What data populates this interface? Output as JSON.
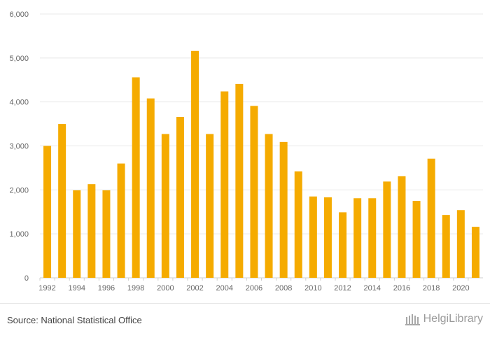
{
  "chart_data": {
    "type": "bar",
    "categories": [
      "1992",
      "1993",
      "1994",
      "1995",
      "1996",
      "1997",
      "1998",
      "1999",
      "2000",
      "2001",
      "2002",
      "2003",
      "2004",
      "2005",
      "2006",
      "2007",
      "2008",
      "2009",
      "2010",
      "2011",
      "2012",
      "2013",
      "2014",
      "2015",
      "2016",
      "2017",
      "2018",
      "2019",
      "2020",
      "2021"
    ],
    "x_tick_labels": [
      "1992",
      "",
      "1994",
      "",
      "1996",
      "",
      "1998",
      "",
      "2000",
      "",
      "2002",
      "",
      "2004",
      "",
      "2006",
      "",
      "2008",
      "",
      "2010",
      "",
      "2012",
      "",
      "2014",
      "",
      "2016",
      "",
      "2018",
      "",
      "2020",
      ""
    ],
    "values": [
      3000,
      3500,
      1990,
      2130,
      1990,
      2600,
      4560,
      4080,
      3270,
      3660,
      5160,
      3270,
      4240,
      4410,
      3910,
      3270,
      3090,
      2420,
      1850,
      1830,
      1490,
      1810,
      1810,
      2190,
      2310,
      1750,
      2710,
      1430,
      1540,
      1160
    ],
    "y_ticks": [
      0,
      1000,
      2000,
      3000,
      4000,
      5000,
      6000
    ],
    "y_tick_labels": [
      "0",
      "1,000",
      "2,000",
      "3,000",
      "4,000",
      "5,000",
      "6,000"
    ],
    "ylim": [
      0,
      6000
    ],
    "title": "",
    "xlabel": "",
    "ylabel": "",
    "grid": true,
    "bar_color": "#f5ab00"
  },
  "footer": {
    "source": "Source: National Statistical Office",
    "logo_text": "HelgiLibrary"
  }
}
